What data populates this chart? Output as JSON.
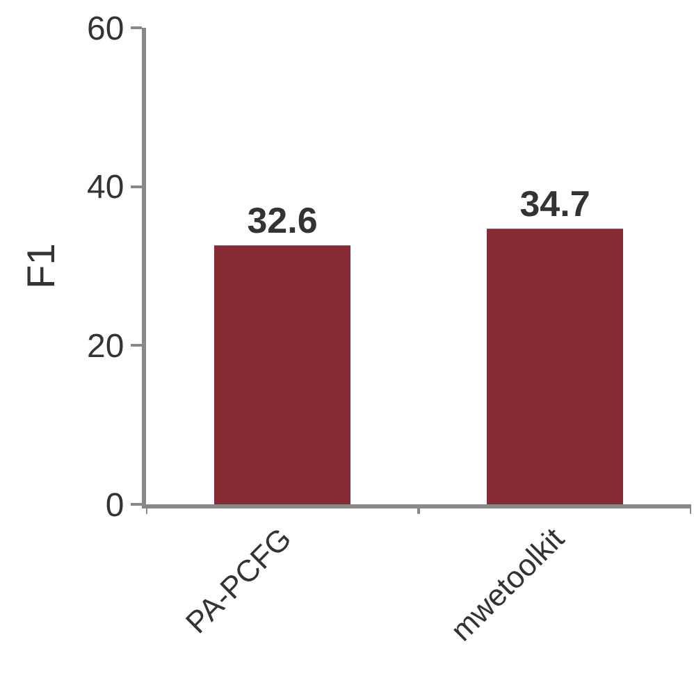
{
  "chart_data": {
    "type": "bar",
    "ylabel": "F1",
    "categories": [
      "PA-PCFG",
      "mwetoolkit"
    ],
    "values": [
      32.6,
      34.7
    ],
    "color": "#862b33",
    "ylim": [
      0,
      60
    ],
    "yticks": [
      0,
      20,
      40,
      60
    ],
    "data_labels": true
  }
}
